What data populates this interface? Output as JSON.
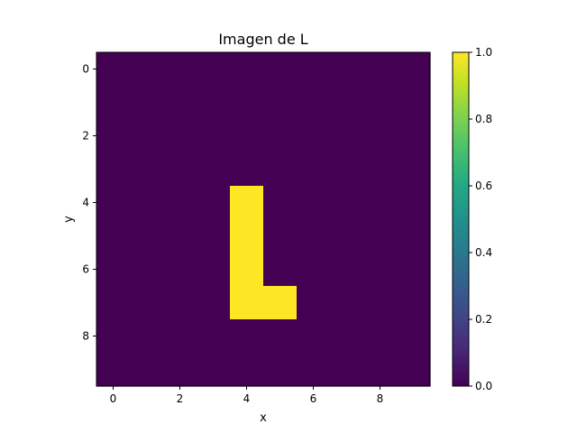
{
  "chart_data": {
    "type": "heatmap",
    "title": "Imagen de L",
    "xlabel": "x",
    "ylabel": "y",
    "rows": 10,
    "cols": 10,
    "xlim": [
      -0.5,
      9.5
    ],
    "ylim": [
      9.5,
      -0.5
    ],
    "xticks": [
      0,
      2,
      4,
      6,
      8
    ],
    "yticks": [
      0,
      2,
      4,
      6,
      8
    ],
    "values": [
      [
        0,
        0,
        0,
        0,
        0,
        0,
        0,
        0,
        0,
        0
      ],
      [
        0,
        0,
        0,
        0,
        0,
        0,
        0,
        0,
        0,
        0
      ],
      [
        0,
        0,
        0,
        0,
        0,
        0,
        0,
        0,
        0,
        0
      ],
      [
        0,
        0,
        0,
        0,
        0,
        0,
        0,
        0,
        0,
        0
      ],
      [
        0,
        0,
        0,
        0,
        1,
        0,
        0,
        0,
        0,
        0
      ],
      [
        0,
        0,
        0,
        0,
        1,
        0,
        0,
        0,
        0,
        0
      ],
      [
        0,
        0,
        0,
        0,
        1,
        0,
        0,
        0,
        0,
        0
      ],
      [
        0,
        0,
        0,
        0,
        1,
        1,
        0,
        0,
        0,
        0
      ],
      [
        0,
        0,
        0,
        0,
        0,
        0,
        0,
        0,
        0,
        0
      ],
      [
        0,
        0,
        0,
        0,
        0,
        0,
        0,
        0,
        0,
        0
      ]
    ],
    "colormap": "viridis",
    "colors": {
      "low": "#440154",
      "high": "#fde725"
    },
    "colorbar": {
      "range": [
        0.0,
        1.0
      ],
      "ticks": [
        "0.0",
        "0.2",
        "0.4",
        "0.6",
        "0.8",
        "1.0"
      ]
    },
    "grid": false
  }
}
